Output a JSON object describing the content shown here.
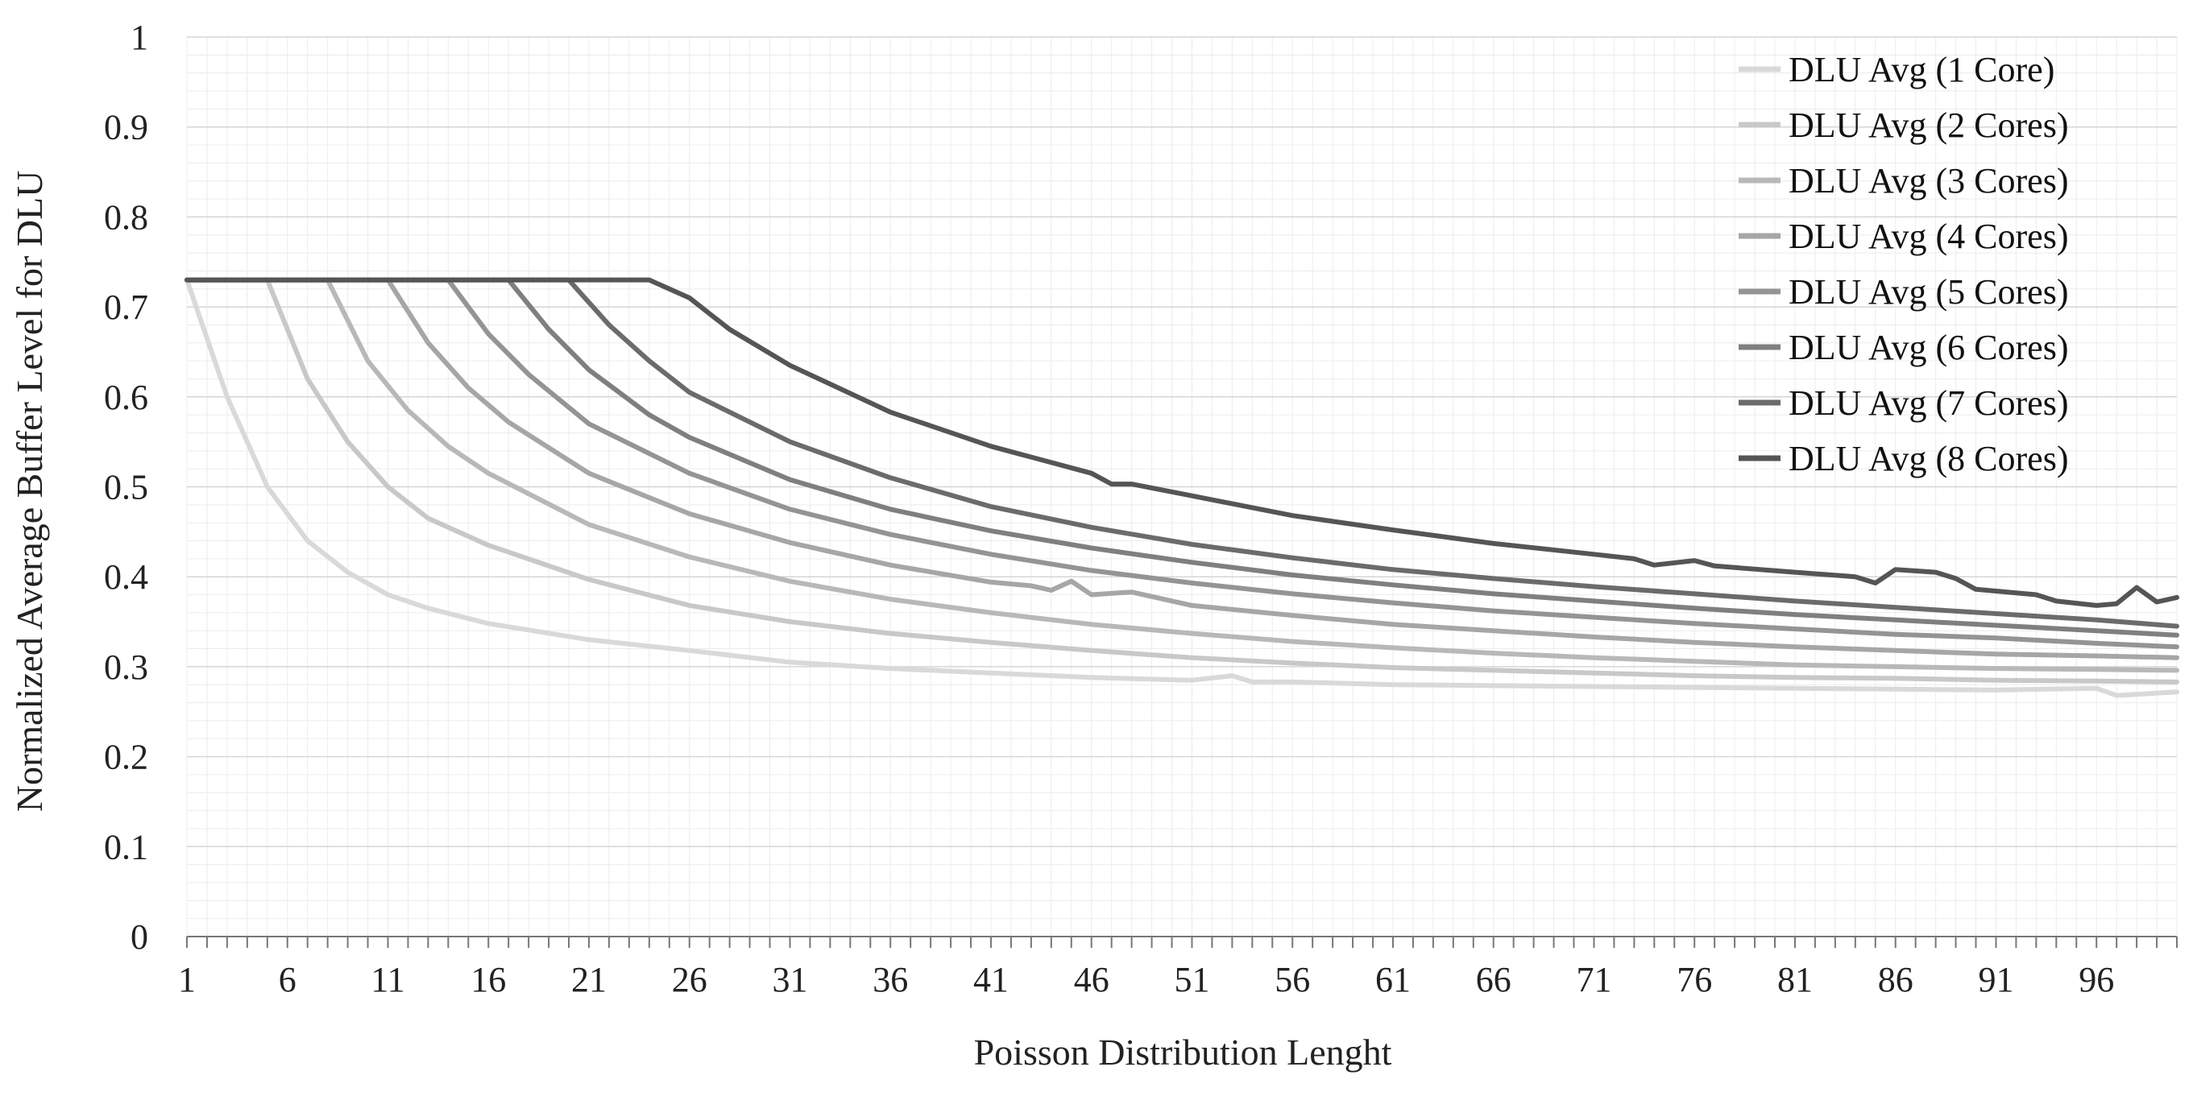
{
  "chart_data": {
    "type": "line",
    "title": "",
    "xlabel": "Poisson Distribution Lenght",
    "ylabel": "Normalized Average Buffer Level for DLU",
    "x_range": [
      1,
      100
    ],
    "x_tick_labels": [
      "1",
      "6",
      "11",
      "16",
      "21",
      "26",
      "31",
      "36",
      "41",
      "46",
      "51",
      "56",
      "61",
      "66",
      "71",
      "76",
      "81",
      "86",
      "91",
      "96"
    ],
    "x_tick_values": [
      1,
      6,
      11,
      16,
      21,
      26,
      31,
      36,
      41,
      46,
      51,
      56,
      61,
      66,
      71,
      76,
      81,
      86,
      91,
      96
    ],
    "ylim": [
      0,
      1
    ],
    "y_tick_labels": [
      "0",
      "0.1",
      "0.2",
      "0.3",
      "0.4",
      "0.5",
      "0.6",
      "0.7",
      "0.8",
      "0.9",
      "1"
    ],
    "y_tick_values": [
      0,
      0.1,
      0.2,
      0.3,
      0.4,
      0.5,
      0.6,
      0.7,
      0.8,
      0.9,
      1
    ],
    "grid": true,
    "legend_position": "top-right",
    "series": [
      {
        "name": "DLU Avg (1 Core)",
        "color": "#d9d9d9",
        "plateau": 0.73,
        "knee": 1,
        "tail": 0.273,
        "points": [
          [
            1,
            0.73
          ],
          [
            3,
            0.6
          ],
          [
            5,
            0.5
          ],
          [
            7,
            0.44
          ],
          [
            9,
            0.405
          ],
          [
            11,
            0.38
          ],
          [
            13,
            0.365
          ],
          [
            16,
            0.348
          ],
          [
            21,
            0.33
          ],
          [
            26,
            0.318
          ],
          [
            31,
            0.305
          ],
          [
            36,
            0.298
          ],
          [
            41,
            0.293
          ],
          [
            46,
            0.288
          ],
          [
            51,
            0.285
          ],
          [
            53,
            0.29
          ],
          [
            54,
            0.283
          ],
          [
            56,
            0.283
          ],
          [
            61,
            0.28
          ],
          [
            66,
            0.279
          ],
          [
            71,
            0.278
          ],
          [
            76,
            0.277
          ],
          [
            81,
            0.276
          ],
          [
            86,
            0.275
          ],
          [
            91,
            0.274
          ],
          [
            96,
            0.276
          ],
          [
            97,
            0.268
          ],
          [
            100,
            0.272
          ]
        ]
      },
      {
        "name": "DLU Avg (2 Cores)",
        "color": "#c8c8c8",
        "plateau": 0.73,
        "knee": 5,
        "tail": 0.283,
        "points": [
          [
            1,
            0.73
          ],
          [
            5,
            0.73
          ],
          [
            7,
            0.62
          ],
          [
            9,
            0.55
          ],
          [
            11,
            0.5
          ],
          [
            13,
            0.465
          ],
          [
            16,
            0.435
          ],
          [
            21,
            0.397
          ],
          [
            26,
            0.368
          ],
          [
            31,
            0.35
          ],
          [
            36,
            0.337
          ],
          [
            41,
            0.327
          ],
          [
            46,
            0.318
          ],
          [
            51,
            0.31
          ],
          [
            56,
            0.304
          ],
          [
            61,
            0.299
          ],
          [
            66,
            0.296
          ],
          [
            71,
            0.293
          ],
          [
            76,
            0.29
          ],
          [
            81,
            0.288
          ],
          [
            86,
            0.287
          ],
          [
            91,
            0.285
          ],
          [
            96,
            0.284
          ],
          [
            100,
            0.283
          ]
        ]
      },
      {
        "name": "DLU Avg (3 Cores)",
        "color": "#b8b8b8",
        "plateau": 0.73,
        "knee": 8,
        "tail": 0.296,
        "points": [
          [
            1,
            0.73
          ],
          [
            8,
            0.73
          ],
          [
            10,
            0.64
          ],
          [
            12,
            0.585
          ],
          [
            14,
            0.545
          ],
          [
            16,
            0.515
          ],
          [
            21,
            0.458
          ],
          [
            26,
            0.422
          ],
          [
            31,
            0.395
          ],
          [
            36,
            0.375
          ],
          [
            41,
            0.36
          ],
          [
            46,
            0.347
          ],
          [
            51,
            0.337
          ],
          [
            56,
            0.328
          ],
          [
            61,
            0.321
          ],
          [
            66,
            0.315
          ],
          [
            71,
            0.31
          ],
          [
            76,
            0.306
          ],
          [
            81,
            0.302
          ],
          [
            86,
            0.3
          ],
          [
            91,
            0.298
          ],
          [
            96,
            0.297
          ],
          [
            100,
            0.296
          ]
        ]
      },
      {
        "name": "DLU Avg (4 Cores)",
        "color": "#a6a6a6",
        "plateau": 0.73,
        "knee": 11,
        "tail": 0.31,
        "points": [
          [
            1,
            0.73
          ],
          [
            11,
            0.73
          ],
          [
            13,
            0.66
          ],
          [
            15,
            0.61
          ],
          [
            17,
            0.572
          ],
          [
            21,
            0.515
          ],
          [
            26,
            0.47
          ],
          [
            31,
            0.438
          ],
          [
            36,
            0.413
          ],
          [
            41,
            0.394
          ],
          [
            43,
            0.39
          ],
          [
            44,
            0.385
          ],
          [
            45,
            0.395
          ],
          [
            46,
            0.38
          ],
          [
            48,
            0.383
          ],
          [
            51,
            0.368
          ],
          [
            56,
            0.357
          ],
          [
            61,
            0.347
          ],
          [
            66,
            0.34
          ],
          [
            71,
            0.333
          ],
          [
            76,
            0.327
          ],
          [
            81,
            0.322
          ],
          [
            86,
            0.318
          ],
          [
            91,
            0.314
          ],
          [
            96,
            0.312
          ],
          [
            100,
            0.31
          ]
        ]
      },
      {
        "name": "DLU Avg (5 Cores)",
        "color": "#949494",
        "plateau": 0.73,
        "knee": 14,
        "tail": 0.322,
        "points": [
          [
            1,
            0.73
          ],
          [
            14,
            0.73
          ],
          [
            16,
            0.67
          ],
          [
            18,
            0.625
          ],
          [
            21,
            0.57
          ],
          [
            26,
            0.515
          ],
          [
            31,
            0.475
          ],
          [
            36,
            0.447
          ],
          [
            41,
            0.425
          ],
          [
            46,
            0.407
          ],
          [
            51,
            0.393
          ],
          [
            56,
            0.381
          ],
          [
            61,
            0.371
          ],
          [
            66,
            0.362
          ],
          [
            71,
            0.355
          ],
          [
            76,
            0.348
          ],
          [
            81,
            0.342
          ],
          [
            86,
            0.336
          ],
          [
            91,
            0.332
          ],
          [
            96,
            0.326
          ],
          [
            100,
            0.322
          ]
        ]
      },
      {
        "name": "DLU Avg (6 Cores)",
        "color": "#7f7f7f",
        "plateau": 0.73,
        "knee": 17,
        "tail": 0.335,
        "points": [
          [
            1,
            0.73
          ],
          [
            17,
            0.73
          ],
          [
            19,
            0.675
          ],
          [
            21,
            0.63
          ],
          [
            24,
            0.58
          ],
          [
            26,
            0.555
          ],
          [
            31,
            0.508
          ],
          [
            36,
            0.475
          ],
          [
            41,
            0.451
          ],
          [
            46,
            0.432
          ],
          [
            51,
            0.416
          ],
          [
            56,
            0.402
          ],
          [
            61,
            0.391
          ],
          [
            66,
            0.381
          ],
          [
            71,
            0.373
          ],
          [
            76,
            0.365
          ],
          [
            81,
            0.358
          ],
          [
            86,
            0.352
          ],
          [
            91,
            0.346
          ],
          [
            96,
            0.34
          ],
          [
            100,
            0.335
          ]
        ]
      },
      {
        "name": "DLU Avg (7 Cores)",
        "color": "#6b6b6b",
        "plateau": 0.73,
        "knee": 20,
        "tail": 0.345,
        "points": [
          [
            1,
            0.73
          ],
          [
            20,
            0.73
          ],
          [
            22,
            0.68
          ],
          [
            24,
            0.64
          ],
          [
            26,
            0.605
          ],
          [
            31,
            0.55
          ],
          [
            36,
            0.51
          ],
          [
            41,
            0.478
          ],
          [
            46,
            0.455
          ],
          [
            51,
            0.436
          ],
          [
            56,
            0.421
          ],
          [
            61,
            0.408
          ],
          [
            66,
            0.398
          ],
          [
            71,
            0.389
          ],
          [
            76,
            0.381
          ],
          [
            81,
            0.373
          ],
          [
            86,
            0.366
          ],
          [
            91,
            0.359
          ],
          [
            96,
            0.352
          ],
          [
            100,
            0.345
          ]
        ]
      },
      {
        "name": "DLU Avg (8 Cores)",
        "color": "#555555",
        "plateau": 0.73,
        "knee": 24,
        "tail": 0.375,
        "points": [
          [
            1,
            0.73
          ],
          [
            24,
            0.73
          ],
          [
            26,
            0.71
          ],
          [
            28,
            0.675
          ],
          [
            31,
            0.635
          ],
          [
            36,
            0.583
          ],
          [
            41,
            0.545
          ],
          [
            46,
            0.515
          ],
          [
            47,
            0.503
          ],
          [
            48,
            0.503
          ],
          [
            51,
            0.49
          ],
          [
            56,
            0.468
          ],
          [
            61,
            0.452
          ],
          [
            66,
            0.437
          ],
          [
            71,
            0.425
          ],
          [
            73,
            0.42
          ],
          [
            74,
            0.413
          ],
          [
            76,
            0.418
          ],
          [
            77,
            0.412
          ],
          [
            81,
            0.405
          ],
          [
            84,
            0.4
          ],
          [
            85,
            0.393
          ],
          [
            86,
            0.408
          ],
          [
            88,
            0.405
          ],
          [
            89,
            0.398
          ],
          [
            90,
            0.386
          ],
          [
            93,
            0.38
          ],
          [
            94,
            0.373
          ],
          [
            96,
            0.368
          ],
          [
            97,
            0.37
          ],
          [
            98,
            0.388
          ],
          [
            99,
            0.372
          ],
          [
            100,
            0.377
          ]
        ]
      }
    ]
  }
}
